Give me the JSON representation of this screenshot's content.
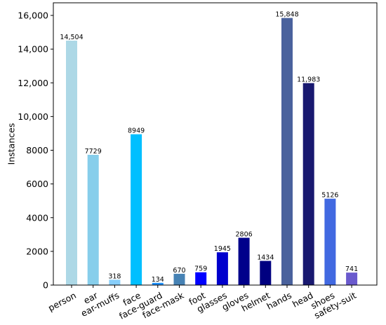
{
  "chart_data": {
    "type": "bar",
    "title": "",
    "xlabel": "",
    "ylabel": "Instances",
    "ylim": [
      0,
      16000
    ],
    "yticks": [
      {
        "value": 0,
        "label": "0"
      },
      {
        "value": 2000,
        "label": "2000"
      },
      {
        "value": 4000,
        "label": "4000"
      },
      {
        "value": 6000,
        "label": "6000"
      },
      {
        "value": 8000,
        "label": "8000"
      },
      {
        "value": 10000,
        "label": "10,000"
      },
      {
        "value": 12000,
        "label": "12,000"
      },
      {
        "value": 14000,
        "label": "14,000"
      },
      {
        "value": 16000,
        "label": "16,000"
      }
    ],
    "grid": false,
    "categories": [
      "person",
      "ear",
      "ear-muffs",
      "face",
      "face-guard",
      "face-mask",
      "foot",
      "glasses",
      "gloves",
      "helmet",
      "hands",
      "head",
      "shoes",
      "safety-suit"
    ],
    "values": [
      14504,
      7729,
      318,
      8949,
      134,
      670,
      759,
      1945,
      2806,
      1434,
      15848,
      11983,
      5126,
      741
    ],
    "value_labels": [
      "14,504",
      "7729",
      "318",
      "8949",
      "134",
      "670",
      "759",
      "1945",
      "2806",
      "1434",
      "15,848",
      "11,983",
      "5126",
      "741"
    ],
    "colors": [
      "#add8e6",
      "#87ceeb",
      "#87cefa",
      "#00bfff",
      "#1e90ff",
      "#4682b4",
      "#0000ff",
      "#0000cd",
      "#00008b",
      "#000080",
      "#4a629d",
      "#191970",
      "#4169e1",
      "#6a5acd"
    ]
  }
}
